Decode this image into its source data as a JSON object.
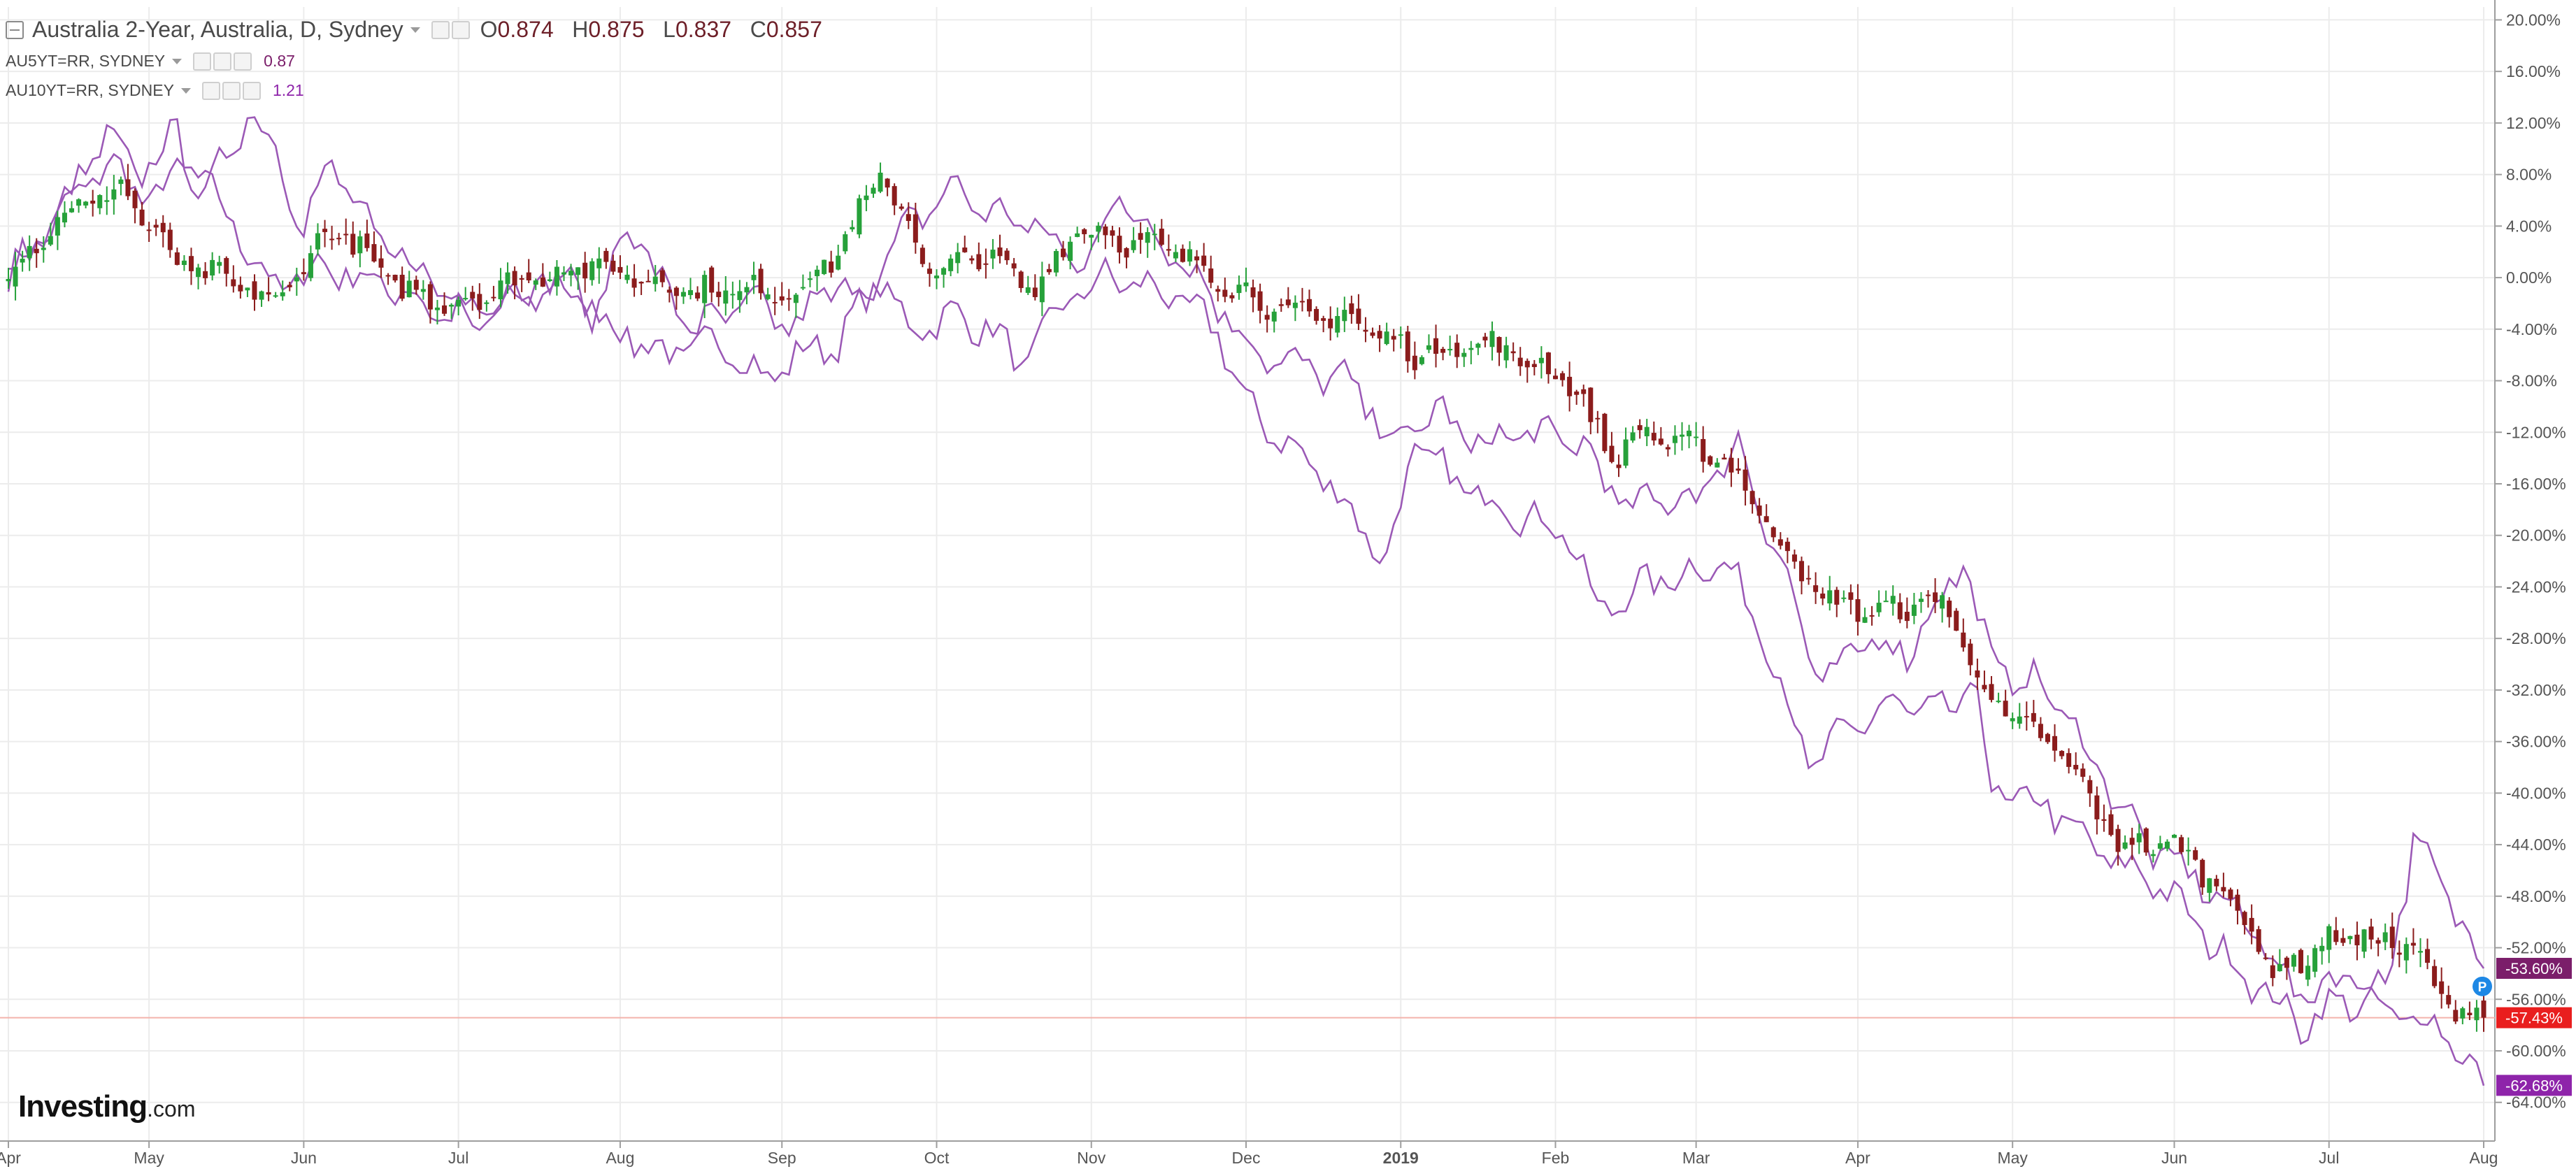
{
  "legend": {
    "main": {
      "title": "Australia 2-Year, Australia, D, Sydney",
      "open_label": "O",
      "open": "0.874",
      "high_label": "H",
      "high": "0.875",
      "low_label": "L",
      "low": "0.837",
      "close_label": "C",
      "close": "0.857"
    },
    "series1": {
      "title": "AU5YT=RR, SYDNEY",
      "value": "0.87"
    },
    "series2": {
      "title": "AU10YT=RR, SYDNEY",
      "value": "1.21"
    }
  },
  "brand": {
    "name": "Investing",
    "suffix": ".com"
  },
  "colors": {
    "up": "#26a13a",
    "down": "#8b1c1c",
    "compare": "#9b59b6",
    "grid": "#ececec",
    "price_line": "#f3b3ab",
    "tag_au2": "#e91e1e",
    "tag_au5": "#7b1e6a",
    "tag_au10": "#8e24aa",
    "p_marker": "#1e88e5"
  },
  "chart_data": {
    "type": "candlestick",
    "yaxis": {
      "unit": "%",
      "ylim": [
        -67,
        21
      ],
      "ticks": [
        "20.00%",
        "16.00%",
        "12.00%",
        "8.00%",
        "4.00%",
        "0.00%",
        "-4.00%",
        "-8.00%",
        "-12.00%",
        "-16.00%",
        "-20.00%",
        "-24.00%",
        "-28.00%",
        "-32.00%",
        "-36.00%",
        "-40.00%",
        "-44.00%",
        "-48.00%",
        "-52.00%",
        "-56.00%",
        "-60.00%",
        "-64.00%"
      ],
      "tick_values": [
        20,
        16,
        12,
        8,
        4,
        0,
        -4,
        -8,
        -12,
        -16,
        -20,
        -24,
        -28,
        -32,
        -36,
        -40,
        -44,
        -48,
        -52,
        -56,
        -60,
        -64
      ]
    },
    "xaxis": {
      "labels": [
        "Apr",
        "May",
        "Jun",
        "Jul",
        "Aug",
        "Sep",
        "Oct",
        "Nov",
        "Dec",
        "2019",
        "Feb",
        "Mar",
        "Apr",
        "May",
        "Jun",
        "Jul",
        "Aug"
      ],
      "label_index": [
        0,
        20,
        42,
        64,
        87,
        110,
        132,
        154,
        176,
        198,
        220,
        240,
        263,
        285,
        308,
        330,
        352
      ]
    },
    "current_values": {
      "au5": "-53.60%",
      "au2": "-57.43%",
      "au10": "-62.68%"
    },
    "current_numeric": {
      "au5": -53.6,
      "au2": -57.43,
      "au10": -62.68
    },
    "marker_label": "P",
    "au2_anchors": [
      [
        0,
        0.5
      ],
      [
        8,
        5
      ],
      [
        16,
        7
      ],
      [
        24,
        1
      ],
      [
        30,
        0
      ],
      [
        38,
        -2
      ],
      [
        46,
        4
      ],
      [
        56,
        -1
      ],
      [
        64,
        -2
      ],
      [
        74,
        0
      ],
      [
        82,
        1
      ],
      [
        90,
        0
      ],
      [
        98,
        -1
      ],
      [
        106,
        -1
      ],
      [
        112,
        -1
      ],
      [
        118,
        2
      ],
      [
        124,
        8
      ],
      [
        128,
        4
      ],
      [
        132,
        0
      ],
      [
        138,
        2
      ],
      [
        146,
        -1
      ],
      [
        152,
        4
      ],
      [
        158,
        3
      ],
      [
        166,
        2
      ],
      [
        172,
        0
      ],
      [
        182,
        -3
      ],
      [
        190,
        -3
      ],
      [
        200,
        -6
      ],
      [
        210,
        -5
      ],
      [
        222,
        -8
      ],
      [
        228,
        -14
      ],
      [
        232,
        -12
      ],
      [
        238,
        -13
      ],
      [
        244,
        -14
      ],
      [
        250,
        -19
      ],
      [
        258,
        -25
      ],
      [
        266,
        -26
      ],
      [
        275,
        -25
      ],
      [
        282,
        -33
      ],
      [
        292,
        -37
      ],
      [
        300,
        -44
      ],
      [
        308,
        -44
      ],
      [
        316,
        -48
      ],
      [
        322,
        -54
      ],
      [
        332,
        -51
      ],
      [
        342,
        -52
      ],
      [
        346,
        -56
      ],
      [
        352,
        -57.4
      ]
    ],
    "au5_anchors": [
      [
        0,
        0
      ],
      [
        6,
        4
      ],
      [
        14,
        11
      ],
      [
        18,
        8
      ],
      [
        24,
        11
      ],
      [
        28,
        6
      ],
      [
        34,
        13
      ],
      [
        38,
        10
      ],
      [
        42,
        4
      ],
      [
        46,
        9
      ],
      [
        52,
        3
      ],
      [
        60,
        0
      ],
      [
        66,
        -3
      ],
      [
        76,
        0
      ],
      [
        84,
        -3
      ],
      [
        88,
        5
      ],
      [
        92,
        0
      ],
      [
        98,
        -4
      ],
      [
        106,
        -2
      ],
      [
        112,
        -4
      ],
      [
        116,
        -1
      ],
      [
        122,
        -1
      ],
      [
        128,
        4
      ],
      [
        134,
        7
      ],
      [
        140,
        5
      ],
      [
        146,
        4
      ],
      [
        152,
        1
      ],
      [
        158,
        6
      ],
      [
        166,
        2
      ],
      [
        172,
        -2
      ],
      [
        178,
        -6
      ],
      [
        184,
        -7
      ],
      [
        190,
        -8
      ],
      [
        198,
        -13
      ],
      [
        203,
        -10
      ],
      [
        208,
        -13
      ],
      [
        216,
        -12
      ],
      [
        224,
        -13
      ],
      [
        230,
        -18
      ],
      [
        236,
        -17
      ],
      [
        240,
        -17
      ],
      [
        246,
        -13
      ],
      [
        252,
        -22
      ],
      [
        258,
        -32
      ],
      [
        264,
        -28
      ],
      [
        270,
        -29
      ],
      [
        278,
        -22
      ],
      [
        282,
        -30
      ],
      [
        290,
        -32
      ],
      [
        296,
        -37
      ],
      [
        304,
        -44
      ],
      [
        312,
        -47
      ],
      [
        320,
        -51
      ],
      [
        326,
        -56
      ],
      [
        332,
        -54
      ],
      [
        338,
        -55
      ],
      [
        342,
        -44
      ],
      [
        346,
        -47
      ],
      [
        352,
        -53.6
      ]
    ],
    "au10_anchors": [
      [
        0,
        0
      ],
      [
        6,
        4
      ],
      [
        14,
        9
      ],
      [
        20,
        6
      ],
      [
        26,
        9
      ],
      [
        32,
        4
      ],
      [
        38,
        -1
      ],
      [
        44,
        1
      ],
      [
        50,
        0
      ],
      [
        56,
        -1
      ],
      [
        62,
        -3
      ],
      [
        72,
        -2
      ],
      [
        80,
        0
      ],
      [
        86,
        -4
      ],
      [
        94,
        -6
      ],
      [
        102,
        -5
      ],
      [
        108,
        -8
      ],
      [
        112,
        -6
      ],
      [
        118,
        -5
      ],
      [
        124,
        0
      ],
      [
        128,
        -4
      ],
      [
        134,
        -3
      ],
      [
        140,
        -4
      ],
      [
        144,
        -7
      ],
      [
        150,
        -2
      ],
      [
        156,
        0
      ],
      [
        164,
        -1
      ],
      [
        172,
        -4
      ],
      [
        176,
        -10
      ],
      [
        182,
        -13
      ],
      [
        188,
        -16
      ],
      [
        196,
        -22
      ],
      [
        200,
        -13
      ],
      [
        206,
        -16
      ],
      [
        214,
        -18
      ],
      [
        222,
        -20
      ],
      [
        226,
        -26
      ],
      [
        232,
        -24
      ],
      [
        238,
        -23
      ],
      [
        244,
        -22
      ],
      [
        250,
        -28
      ],
      [
        256,
        -38
      ],
      [
        262,
        -35
      ],
      [
        268,
        -33
      ],
      [
        274,
        -34
      ],
      [
        280,
        -32
      ],
      [
        282,
        -40
      ],
      [
        290,
        -41
      ],
      [
        298,
        -45
      ],
      [
        306,
        -47
      ],
      [
        314,
        -52
      ],
      [
        320,
        -55
      ],
      [
        326,
        -58
      ],
      [
        332,
        -56
      ],
      [
        338,
        -57
      ],
      [
        346,
        -58
      ],
      [
        352,
        -62.7
      ]
    ]
  }
}
